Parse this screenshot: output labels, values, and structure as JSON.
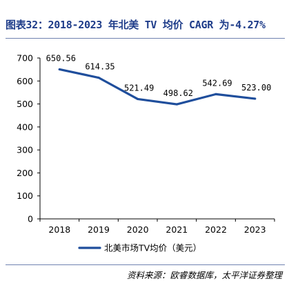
{
  "figure": {
    "title": "图表32：2018-2023 年北美 TV 均价 CAGR 为-4.27%",
    "source": "资料来源：欧睿数据库，太平洋证券整理"
  },
  "chart_data": {
    "type": "line",
    "categories": [
      "2018",
      "2019",
      "2020",
      "2021",
      "2022",
      "2023"
    ],
    "series": [
      {
        "name": "北美市场TV均价（美元）",
        "values": [
          650.56,
          614.35,
          521.49,
          498.62,
          542.69,
          523.0
        ],
        "labels": [
          "650.56",
          "614.35",
          "521.49",
          "498.62",
          "542.69",
          "523.00"
        ],
        "color": "#1f4e9c"
      }
    ],
    "ylim": [
      0,
      700
    ],
    "yticks": [
      0,
      100,
      200,
      300,
      400,
      500,
      600,
      700
    ],
    "grid": false,
    "legend": "bottom",
    "xlabel": "",
    "ylabel": ""
  }
}
